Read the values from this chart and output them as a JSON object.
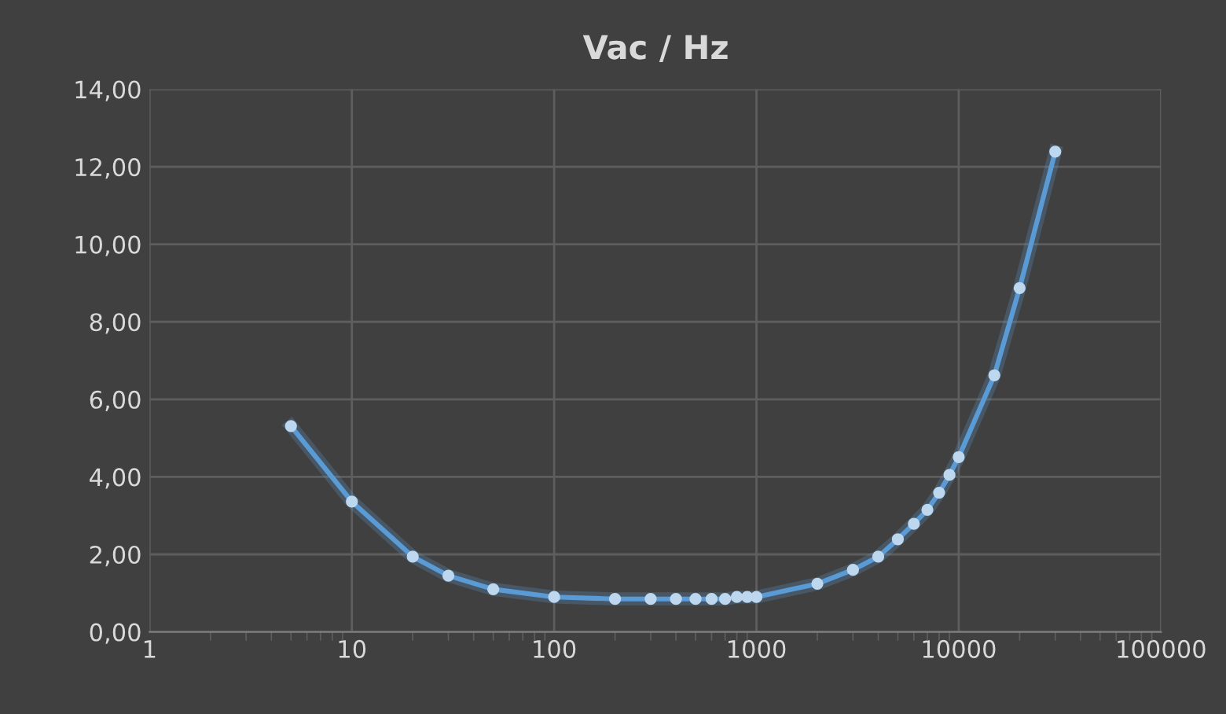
{
  "chart_data": {
    "type": "line",
    "title": "Vac / Hz",
    "log": "x",
    "grid": true,
    "marker": "circle",
    "line_style": "solid",
    "x": [
      5,
      10,
      20,
      30,
      50,
      100,
      200,
      300,
      400,
      500,
      600,
      700,
      800,
      900,
      1000,
      2000,
      3000,
      4000,
      5000,
      6000,
      7000,
      8000,
      9000,
      10000,
      15000,
      20000,
      30000
    ],
    "series": [
      {
        "color": "#5b9bd5",
        "values": [
          5.31,
          3.36,
          1.94,
          1.45,
          1.1,
          0.9,
          0.85,
          0.85,
          0.85,
          0.85,
          0.85,
          0.85,
          0.9,
          0.9,
          0.9,
          1.24,
          1.6,
          1.94,
          2.39,
          2.79,
          3.15,
          3.59,
          4.05,
          4.51,
          6.62,
          8.87,
          12.39
        ]
      }
    ],
    "xlim": [
      1,
      100000
    ],
    "xticks": [
      1,
      10,
      100,
      1000,
      10000,
      100000
    ],
    "ylim": [
      0,
      14
    ],
    "yticks": [
      {
        "value": 0,
        "label": "0,00"
      },
      {
        "value": 2,
        "label": "2,00"
      },
      {
        "value": 4,
        "label": "4,00"
      },
      {
        "value": 6,
        "label": "6,00"
      },
      {
        "value": 8,
        "label": "8,00"
      },
      {
        "value": 10,
        "label": "10,00"
      },
      {
        "value": 12,
        "label": "12,00"
      },
      {
        "value": 14,
        "label": "14,00"
      }
    ]
  }
}
